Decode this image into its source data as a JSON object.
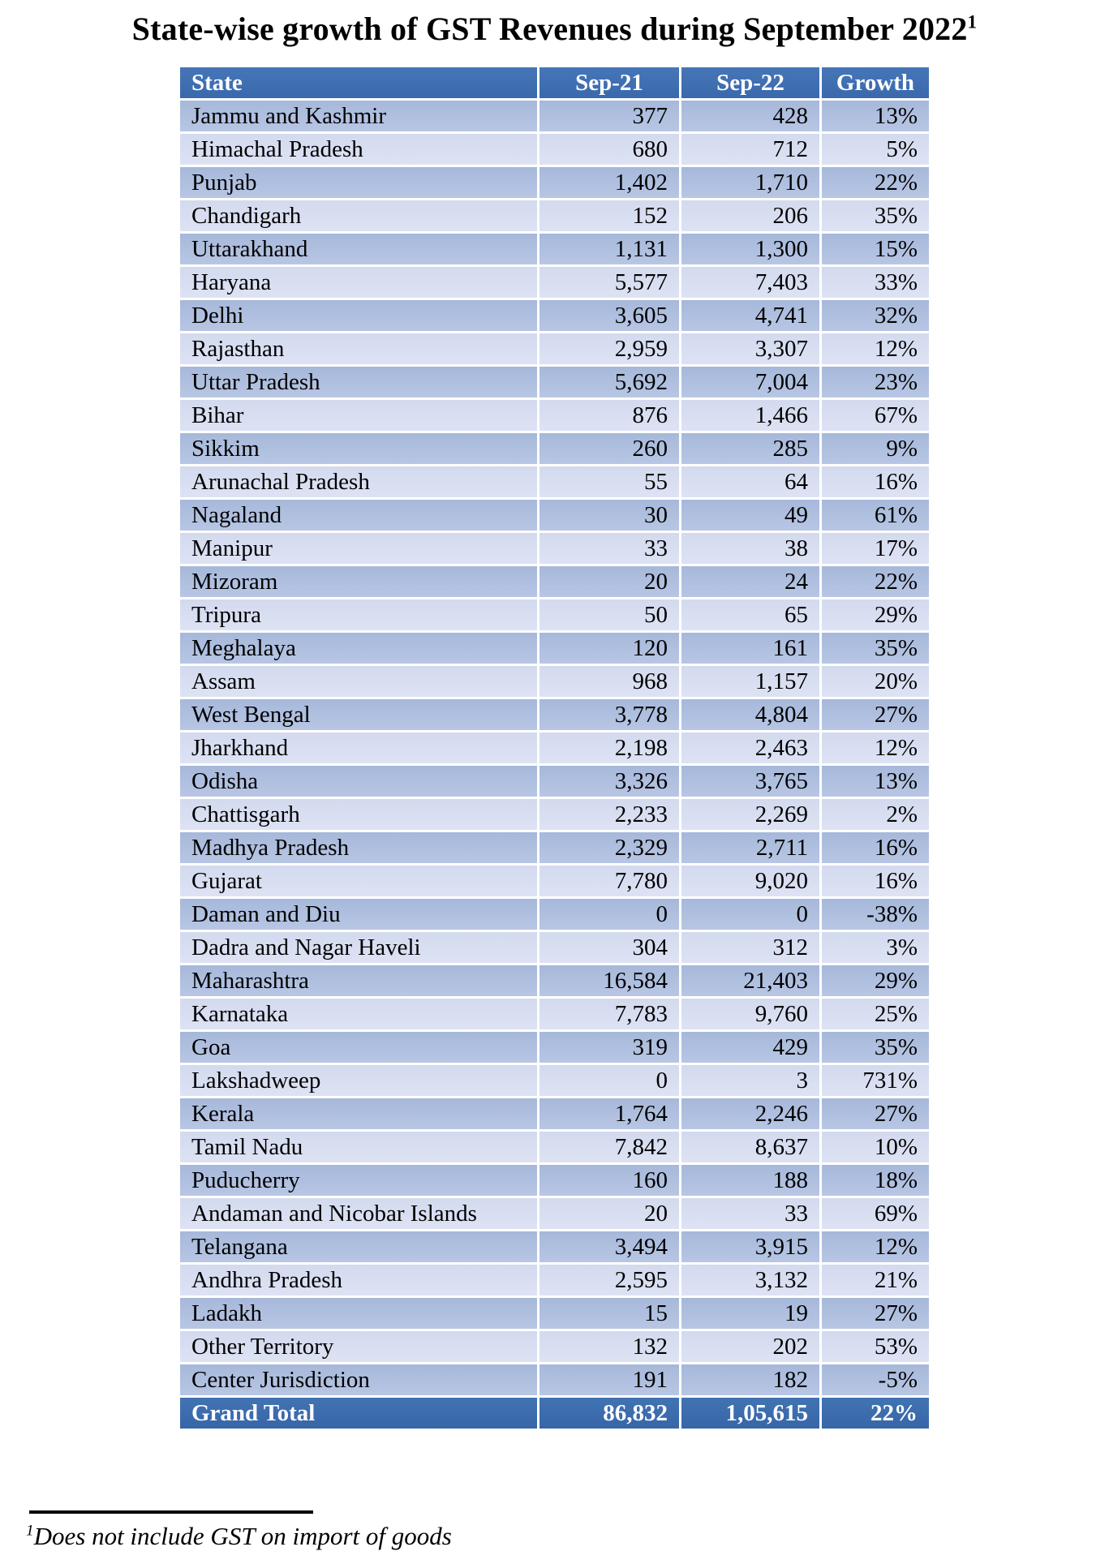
{
  "title": {
    "text": "State-wise growth of GST Revenues during September 2022",
    "superscript": "1"
  },
  "table": {
    "headers": [
      "State",
      "Sep-21",
      "Sep-22",
      "Growth"
    ],
    "rows": [
      {
        "state": "Jammu and Kashmir",
        "sep21": "377",
        "sep22": "428",
        "growth": "13%"
      },
      {
        "state": "Himachal Pradesh",
        "sep21": "680",
        "sep22": "712",
        "growth": "5%"
      },
      {
        "state": "Punjab",
        "sep21": "1,402",
        "sep22": "1,710",
        "growth": "22%"
      },
      {
        "state": "Chandigarh",
        "sep21": "152",
        "sep22": "206",
        "growth": "35%"
      },
      {
        "state": "Uttarakhand",
        "sep21": "1,131",
        "sep22": "1,300",
        "growth": "15%"
      },
      {
        "state": "Haryana",
        "sep21": "5,577",
        "sep22": "7,403",
        "growth": "33%"
      },
      {
        "state": "Delhi",
        "sep21": "3,605",
        "sep22": "4,741",
        "growth": "32%"
      },
      {
        "state": "Rajasthan",
        "sep21": "2,959",
        "sep22": "3,307",
        "growth": "12%"
      },
      {
        "state": "Uttar Pradesh",
        "sep21": "5,692",
        "sep22": "7,004",
        "growth": "23%"
      },
      {
        "state": "Bihar",
        "sep21": "876",
        "sep22": "1,466",
        "growth": "67%"
      },
      {
        "state": "Sikkim",
        "sep21": "260",
        "sep22": "285",
        "growth": "9%"
      },
      {
        "state": "Arunachal Pradesh",
        "sep21": "55",
        "sep22": "64",
        "growth": "16%"
      },
      {
        "state": "Nagaland",
        "sep21": "30",
        "sep22": "49",
        "growth": "61%"
      },
      {
        "state": "Manipur",
        "sep21": "33",
        "sep22": "38",
        "growth": "17%"
      },
      {
        "state": "Mizoram",
        "sep21": "20",
        "sep22": "24",
        "growth": "22%"
      },
      {
        "state": "Tripura",
        "sep21": "50",
        "sep22": "65",
        "growth": "29%"
      },
      {
        "state": "Meghalaya",
        "sep21": "120",
        "sep22": "161",
        "growth": "35%"
      },
      {
        "state": "Assam",
        "sep21": "968",
        "sep22": "1,157",
        "growth": "20%"
      },
      {
        "state": "West Bengal",
        "sep21": "3,778",
        "sep22": "4,804",
        "growth": "27%"
      },
      {
        "state": "Jharkhand",
        "sep21": "2,198",
        "sep22": "2,463",
        "growth": "12%"
      },
      {
        "state": "Odisha",
        "sep21": "3,326",
        "sep22": "3,765",
        "growth": "13%"
      },
      {
        "state": "Chattisgarh",
        "sep21": "2,233",
        "sep22": "2,269",
        "growth": "2%"
      },
      {
        "state": "Madhya Pradesh",
        "sep21": "2,329",
        "sep22": "2,711",
        "growth": "16%"
      },
      {
        "state": "Gujarat",
        "sep21": "7,780",
        "sep22": "9,020",
        "growth": "16%"
      },
      {
        "state": "Daman and Diu",
        "sep21": "0",
        "sep22": "0",
        "growth": "-38%"
      },
      {
        "state": "Dadra and Nagar Haveli",
        "sep21": "304",
        "sep22": "312",
        "growth": "3%"
      },
      {
        "state": "Maharashtra",
        "sep21": "16,584",
        "sep22": "21,403",
        "growth": "29%"
      },
      {
        "state": "Karnataka",
        "sep21": "7,783",
        "sep22": "9,760",
        "growth": "25%"
      },
      {
        "state": "Goa",
        "sep21": "319",
        "sep22": "429",
        "growth": "35%"
      },
      {
        "state": "Lakshadweep",
        "sep21": "0",
        "sep22": "3",
        "growth": "731%"
      },
      {
        "state": "Kerala",
        "sep21": "1,764",
        "sep22": "2,246",
        "growth": "27%"
      },
      {
        "state": "Tamil Nadu",
        "sep21": "7,842",
        "sep22": "8,637",
        "growth": "10%"
      },
      {
        "state": "Puducherry",
        "sep21": "160",
        "sep22": "188",
        "growth": "18%"
      },
      {
        "state": "Andaman and Nicobar Islands",
        "sep21": "20",
        "sep22": "33",
        "growth": "69%"
      },
      {
        "state": "Telangana",
        "sep21": "3,494",
        "sep22": "3,915",
        "growth": "12%"
      },
      {
        "state": "Andhra Pradesh",
        "sep21": "2,595",
        "sep22": "3,132",
        "growth": "21%"
      },
      {
        "state": "Ladakh",
        "sep21": "15",
        "sep22": "19",
        "growth": "27%"
      },
      {
        "state": "Other Territory",
        "sep21": "132",
        "sep22": "202",
        "growth": "53%"
      },
      {
        "state": "Center Jurisdiction",
        "sep21": "191",
        "sep22": "182",
        "growth": "-5%"
      }
    ],
    "grand_total": {
      "state": "Grand Total",
      "sep21": "86,832",
      "sep22": "1,05,615",
      "growth": "22%"
    }
  },
  "footnote": {
    "superscript": "1",
    "text": "Does not include GST on import of goods"
  },
  "colors": {
    "header_bg": "#3e6cb2",
    "band_dark": "#aebfde",
    "band_light": "#d8def1",
    "total_bg": "#3c70ae",
    "header_text": "#ffffff",
    "body_text": "#000000"
  }
}
